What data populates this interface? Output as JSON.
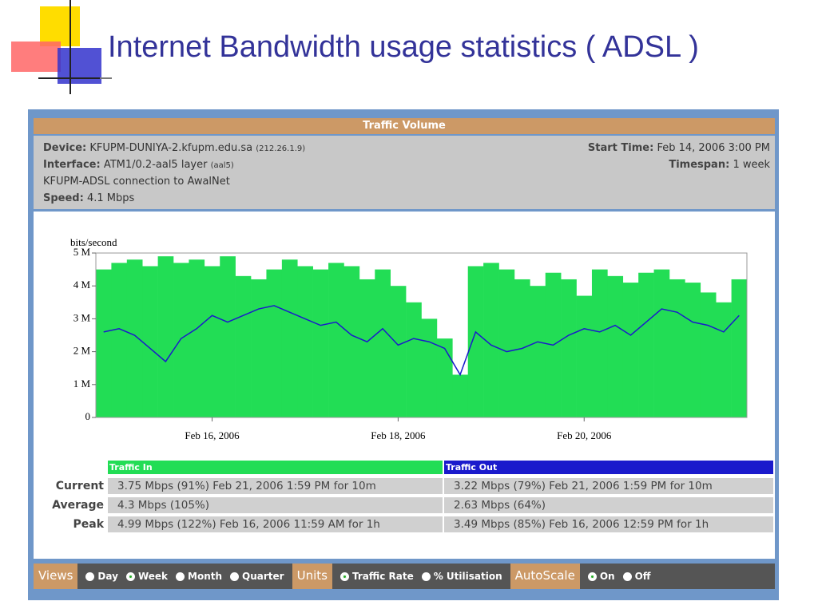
{
  "slide": {
    "title": "Internet Bandwidth usage statistics ( ADSL )"
  },
  "panel": {
    "title": "Traffic Volume",
    "device_label": "Device:",
    "device": "KFUPM-DUNIYA-2.kfupm.edu.sa",
    "device_ip": "(212.26.1.9)",
    "interface_label": "Interface:",
    "interface": "ATM1/0.2-aal5 layer",
    "interface_tag": "(aal5)",
    "description": "KFUPM-ADSL connection to AwalNet",
    "speed_label": "Speed:",
    "speed": "4.1 Mbps",
    "start_label": "Start Time:",
    "start": "Feb 14, 2006 3:00 PM",
    "timespan_label": "Timespan:",
    "timespan": "1 week"
  },
  "chart_data": {
    "type": "area-line",
    "y_label": "bits/second",
    "x": [
      0,
      4,
      8,
      12,
      16,
      20,
      24,
      28,
      32,
      36,
      40,
      44,
      48,
      52,
      56,
      60,
      64,
      68,
      72,
      76,
      80,
      84,
      88,
      92,
      96,
      100,
      104,
      108,
      112,
      116,
      120,
      124,
      128,
      132,
      136,
      140,
      144,
      148,
      152,
      156,
      160,
      164
    ],
    "xlim": [
      0,
      168
    ],
    "xticks": [
      {
        "value": 30,
        "label": "Feb 16, 2006"
      },
      {
        "value": 78,
        "label": "Feb 18, 2006"
      },
      {
        "value": 126,
        "label": "Feb 20, 2006"
      }
    ],
    "ylim": [
      0,
      5
    ],
    "yticks": [
      0,
      {
        "value": 1,
        "label": "1 M"
      },
      {
        "value": 2,
        "label": "2 M"
      },
      {
        "value": 3,
        "label": "3 M"
      },
      {
        "value": 4,
        "label": "4 M"
      },
      {
        "value": 5,
        "label": "5 M"
      }
    ],
    "grid": false,
    "series": [
      {
        "name": "Traffic In",
        "color": "#22dd55",
        "values": [
          4.5,
          4.7,
          4.8,
          4.6,
          4.9,
          4.7,
          4.8,
          4.6,
          4.9,
          4.3,
          4.2,
          4.5,
          4.8,
          4.6,
          4.5,
          4.7,
          4.6,
          4.2,
          4.5,
          4.0,
          3.5,
          3.0,
          2.4,
          1.3,
          4.6,
          4.7,
          4.5,
          4.2,
          4.0,
          4.4,
          4.2,
          3.7,
          4.5,
          4.3,
          4.1,
          4.4,
          4.5,
          4.2,
          4.1,
          3.8,
          3.5,
          4.2
        ]
      },
      {
        "name": "Traffic Out",
        "color": "#1a1acc",
        "values": [
          2.6,
          2.7,
          2.5,
          2.1,
          1.7,
          2.4,
          2.7,
          3.1,
          2.9,
          3.1,
          3.3,
          3.4,
          3.2,
          3.0,
          2.8,
          2.9,
          2.5,
          2.3,
          2.7,
          2.2,
          2.4,
          2.3,
          2.1,
          1.3,
          2.6,
          2.2,
          2.0,
          2.1,
          2.3,
          2.2,
          2.5,
          2.7,
          2.6,
          2.8,
          2.5,
          2.9,
          3.3,
          3.2,
          2.9,
          2.8,
          2.6,
          3.1
        ]
      }
    ]
  },
  "stats": {
    "rows": [
      [
        "Current",
        "3.75 Mbps (91%) Feb 21, 2006 1:59 PM for 10m",
        "3.22 Mbps (79%) Feb 21, 2006 1:59 PM for 10m"
      ],
      [
        "Average",
        "4.3 Mbps (105%)",
        "2.63 Mbps (64%)"
      ],
      [
        "Peak",
        "4.99 Mbps (122%) Feb 16, 2006 11:59 AM for 1h",
        "3.49 Mbps (85%) Feb 16, 2006 12:59 PM for 1h"
      ]
    ]
  },
  "controls": {
    "views_label": "Views",
    "views": [
      "Day",
      "Week",
      "Month",
      "Quarter"
    ],
    "units_label": "Units",
    "units": [
      "Traffic Rate",
      "% Utilisation"
    ],
    "autoscale_label": "AutoScale",
    "autoscale": [
      "On",
      "Off"
    ]
  }
}
